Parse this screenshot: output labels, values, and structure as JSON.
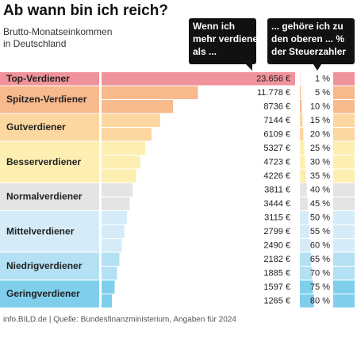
{
  "header": {
    "title": "Ab wann bin ich reich?",
    "subtitle_lines": [
      "Brutto-Monatseinkommen",
      "in Deutschland"
    ]
  },
  "callouts": [
    {
      "lines": [
        "Wenn ich",
        "mehr verdiene",
        "als ..."
      ]
    },
    {
      "lines": [
        "... gehöre ich zu",
        "den oberen ... %",
        "der Steuerzahler"
      ]
    }
  ],
  "groups": [
    {
      "label": "Top-Verdiener",
      "color": "#f0929b",
      "rows": [
        {
          "income": 23656,
          "income_label": "23.656 €",
          "percent": 1,
          "percent_label": "1 %"
        }
      ]
    },
    {
      "label": "Spitzen-Verdiener",
      "color": "#f8b98d",
      "rows": [
        {
          "income": 11778,
          "income_label": "11.778 €",
          "percent": 5,
          "percent_label": "5 %"
        },
        {
          "income": 8736,
          "income_label": "8736 €",
          "percent": 10,
          "percent_label": "10 %"
        }
      ]
    },
    {
      "label": "Gutverdiener",
      "color": "#fcd79f",
      "rows": [
        {
          "income": 7144,
          "income_label": "7144 €",
          "percent": 15,
          "percent_label": "15 %"
        },
        {
          "income": 6109,
          "income_label": "6109 €",
          "percent": 20,
          "percent_label": "20 %"
        }
      ]
    },
    {
      "label": "Besserverdiener",
      "color": "#fdefb2",
      "rows": [
        {
          "income": 5327,
          "income_label": "5327 €",
          "percent": 25,
          "percent_label": "25 %"
        },
        {
          "income": 4723,
          "income_label": "4723 €",
          "percent": 30,
          "percent_label": "30 %"
        },
        {
          "income": 4226,
          "income_label": "4226 €",
          "percent": 35,
          "percent_label": "35 %"
        }
      ]
    },
    {
      "label": "Normalverdiener",
      "color": "#e4e4e4",
      "rows": [
        {
          "income": 3811,
          "income_label": "3811 €",
          "percent": 40,
          "percent_label": "40 %"
        },
        {
          "income": 3444,
          "income_label": "3444 €",
          "percent": 45,
          "percent_label": "45 %"
        }
      ]
    },
    {
      "label": "Mittelverdiener",
      "color": "#d5ecf8",
      "rows": [
        {
          "income": 3115,
          "income_label": "3115 €",
          "percent": 50,
          "percent_label": "50 %"
        },
        {
          "income": 2799,
          "income_label": "2799 €",
          "percent": 55,
          "percent_label": "55 %"
        },
        {
          "income": 2490,
          "income_label": "2490 €",
          "percent": 60,
          "percent_label": "60 %"
        }
      ]
    },
    {
      "label": "Niedrigverdiener",
      "color": "#b3e0f3",
      "rows": [
        {
          "income": 2182,
          "income_label": "2182 €",
          "percent": 65,
          "percent_label": "65 %"
        },
        {
          "income": 1885,
          "income_label": "1885 €",
          "percent": 70,
          "percent_label": "70 %"
        }
      ]
    },
    {
      "label": "Geringverdiener",
      "color": "#7fcfec",
      "rows": [
        {
          "income": 1597,
          "income_label": "1597 €",
          "percent": 75,
          "percent_label": "75 %"
        },
        {
          "income": 1265,
          "income_label": "1265 €",
          "percent": 80,
          "percent_label": "80 %"
        }
      ]
    }
  ],
  "footer": "info.BILD.de | Quelle: Bundesfinanzministerium, Angaben für 2024"
}
